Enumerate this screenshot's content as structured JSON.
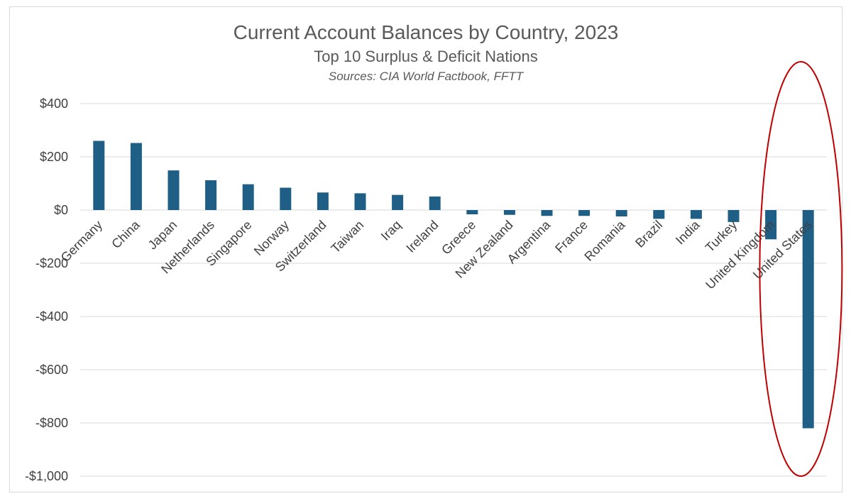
{
  "chart_data": {
    "type": "bar",
    "title": "Current Account Balances by Country, 2023",
    "subtitle": "Top 10 Surplus & Deficit Nations",
    "source": "Sources: CIA World Factbook, FFTT",
    "xlabel": "",
    "ylabel": "",
    "ylim": [
      -1000,
      400
    ],
    "yticks": [
      400,
      200,
      0,
      -200,
      -400,
      -600,
      -800,
      -1000
    ],
    "ytick_labels": [
      "$400",
      "$200",
      "$0",
      "-$200",
      "-$400",
      "-$600",
      "-$800",
      "-$1,000"
    ],
    "grid": true,
    "categories": [
      "Germany",
      "China",
      "Japan",
      "Netherlands",
      "Singapore",
      "Norway",
      "Switzerland",
      "Taiwan",
      "Iraq",
      "Ireland",
      "Greece",
      "New Zealand",
      "Argentina",
      "France",
      "Romania",
      "Brazil",
      "India",
      "Turkey",
      "United Kingdom",
      "United States"
    ],
    "values": [
      260,
      252,
      149,
      112,
      97,
      84,
      66,
      63,
      57,
      51,
      -16,
      -18,
      -22,
      -22,
      -24,
      -33,
      -33,
      -45,
      -110,
      -820
    ],
    "bar_color": "#1f5f86",
    "annotation": {
      "shape": "ellipse",
      "color": "#c00000",
      "encloses": [
        "United Kingdom",
        "United States"
      ]
    }
  }
}
